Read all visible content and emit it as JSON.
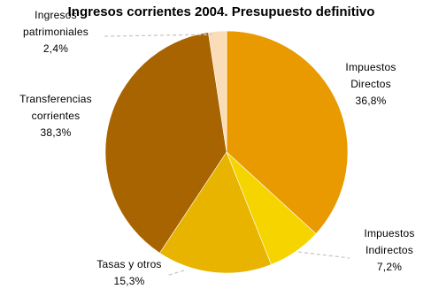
{
  "chart_data": {
    "type": "pie",
    "title": "Ingresos corrientes 2004. Presupuesto definitivo",
    "slices": [
      {
        "name": "Impuestos Directos",
        "label_lines": [
          "Impuestos",
          "Directos"
        ],
        "pct_label": "36,8%",
        "value": 36.8,
        "color": "#E89A00"
      },
      {
        "name": "Impuestos Indirectos",
        "label_lines": [
          "Impuestos",
          "Indirectos"
        ],
        "pct_label": "7,2%",
        "value": 7.2,
        "color": "#F5D400"
      },
      {
        "name": "Tasas y otros",
        "label_lines": [
          "Tasas y otros"
        ],
        "pct_label": "15,3%",
        "value": 15.3,
        "color": "#E8B400"
      },
      {
        "name": "Transferencias corrientes",
        "label_lines": [
          "Transferencias",
          "corrientes"
        ],
        "pct_label": "38,3%",
        "value": 38.3,
        "color": "#A86400"
      },
      {
        "name": "Ingresos patrimoniales",
        "label_lines": [
          "Ingresos",
          "patrimoniales"
        ],
        "pct_label": "2,4%",
        "value": 2.4,
        "color": "#FADDB8"
      }
    ]
  }
}
